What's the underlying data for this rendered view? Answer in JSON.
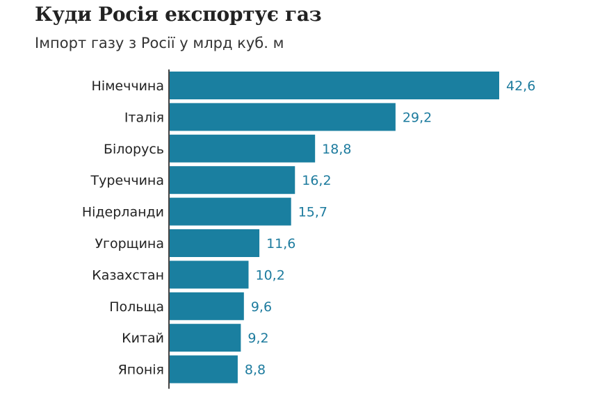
{
  "chart_data": {
    "type": "bar",
    "orientation": "horizontal",
    "title": "Куди Росія експортує газ",
    "subtitle": "Імпорт газу з Росії у млрд куб. м",
    "categories": [
      "Німеччина",
      "Італія",
      "Білорусь",
      "Туреччина",
      "Нідерланди",
      "Угорщина",
      "Казахстан",
      "Польща",
      "Китай",
      "Японія"
    ],
    "values": [
      42.6,
      29.2,
      18.8,
      16.2,
      15.7,
      11.6,
      10.2,
      9.6,
      9.2,
      8.8
    ],
    "value_labels": [
      "42,6",
      "29,2",
      "18,8",
      "16,2",
      "15,7",
      "11,6",
      "10,2",
      "9,6",
      "9,2",
      "8,8"
    ],
    "xlabel": "",
    "ylabel": "",
    "xlim": [
      0,
      42.6
    ],
    "grid": false,
    "colors": {
      "bar": "#1a7fa0",
      "value_label": "#1d7b9e",
      "axis": "#444444"
    }
  }
}
